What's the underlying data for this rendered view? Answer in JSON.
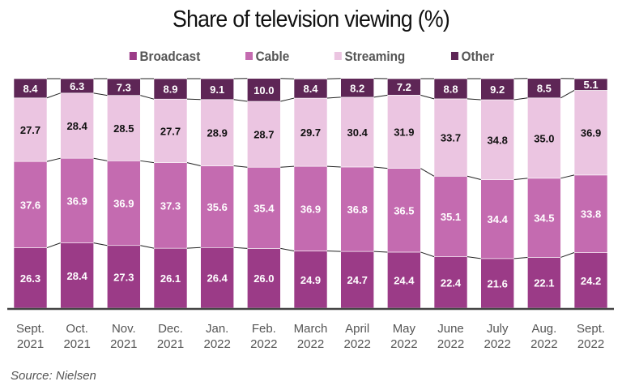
{
  "chart_data": {
    "type": "bar",
    "stacked": true,
    "title": "Share of television viewing (%)",
    "xlabel": "",
    "ylabel": "",
    "ylim": [
      0,
      100
    ],
    "grid": false,
    "legend_position": "top",
    "categories": [
      [
        "Sept.",
        "2021"
      ],
      [
        "Oct.",
        "2021"
      ],
      [
        "Nov.",
        "2021"
      ],
      [
        "Dec.",
        "2021"
      ],
      [
        "Jan.",
        "2022"
      ],
      [
        "Feb.",
        "2022"
      ],
      [
        "March",
        "2022"
      ],
      [
        "April",
        "2022"
      ],
      [
        "May",
        "2022"
      ],
      [
        "June",
        "2022"
      ],
      [
        "July",
        "2022"
      ],
      [
        "Aug.",
        "2022"
      ],
      [
        "Sept.",
        "2022"
      ]
    ],
    "series": [
      {
        "name": "Broadcast",
        "color": "#9b3b87",
        "label_color": "#ffffff",
        "values": [
          26.3,
          28.4,
          27.3,
          26.1,
          26.4,
          26.0,
          24.9,
          24.7,
          24.4,
          22.4,
          21.6,
          22.1,
          24.2
        ]
      },
      {
        "name": "Cable",
        "color": "#c46bb0",
        "label_color": "#ffffff",
        "values": [
          37.6,
          36.9,
          36.9,
          37.3,
          35.6,
          35.4,
          36.9,
          36.8,
          36.5,
          35.1,
          34.4,
          34.5,
          33.8
        ]
      },
      {
        "name": "Streaming",
        "color": "#ebc5e1",
        "label_color": "#111111",
        "values": [
          27.7,
          28.4,
          28.5,
          27.7,
          28.9,
          28.7,
          29.7,
          30.4,
          31.9,
          33.7,
          34.8,
          35.0,
          36.9
        ]
      },
      {
        "name": "Other",
        "color": "#5e2656",
        "label_color": "#ffffff",
        "values": [
          8.4,
          6.3,
          7.3,
          8.9,
          9.1,
          10.0,
          8.4,
          8.2,
          7.2,
          8.8,
          9.2,
          8.5,
          5.1
        ]
      }
    ],
    "source": "Source: Nielsen"
  }
}
